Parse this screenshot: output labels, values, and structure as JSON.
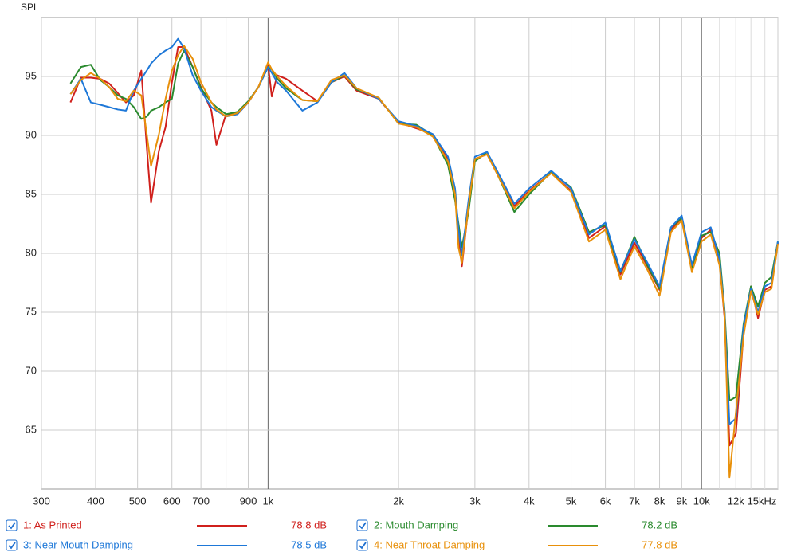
{
  "chart_data": {
    "type": "line",
    "ylabel": "SPL",
    "log_x": true,
    "grid": true,
    "xlim": [
      300,
      15000
    ],
    "ylim": [
      60,
      100
    ],
    "yticks": [
      65,
      70,
      75,
      80,
      85,
      90,
      95
    ],
    "xticks": [
      300,
      400,
      500,
      600,
      700,
      900,
      {
        "value": 1000,
        "label": "1k"
      },
      {
        "value": 2000,
        "label": "2k"
      },
      {
        "value": 3000,
        "label": "3k"
      },
      {
        "value": 4000,
        "label": "4k"
      },
      {
        "value": 5000,
        "label": "5k"
      },
      {
        "value": 6000,
        "label": "6k"
      },
      {
        "value": 7000,
        "label": "7k"
      },
      {
        "value": 8000,
        "label": "8k"
      },
      {
        "value": 9000,
        "label": "9k"
      },
      {
        "value": 10000,
        "label": "10k"
      },
      {
        "value": 12000,
        "label": "12k"
      },
      {
        "value": 15000,
        "label": "15kHz"
      }
    ],
    "xminor": [
      800,
      11000,
      13000,
      14000
    ],
    "x": [
      350,
      370,
      390,
      410,
      430,
      450,
      470,
      490,
      510,
      525,
      537,
      560,
      580,
      600,
      620,
      640,
      670,
      700,
      740,
      760,
      800,
      850,
      900,
      950,
      1000,
      1020,
      1050,
      1100,
      1200,
      1300,
      1400,
      1500,
      1600,
      1800,
      2000,
      2200,
      2400,
      2600,
      2700,
      2750,
      2800,
      2900,
      3000,
      3200,
      3500,
      3700,
      4000,
      4500,
      5000,
      5500,
      6000,
      6500,
      7000,
      7500,
      8000,
      8500,
      9000,
      9500,
      10000,
      10500,
      11000,
      11300,
      11600,
      12000,
      12500,
      13000,
      13500,
      14000,
      14500,
      15000
    ],
    "series": [
      {
        "name": "1: As Printed",
        "color": "#d0201c",
        "level": 78.8,
        "level_label": "78.8 dB",
        "values": [
          92.8,
          94.9,
          94.9,
          94.8,
          94.4,
          93.6,
          92.8,
          93.4,
          95.5,
          89.0,
          84.3,
          88.7,
          90.7,
          94.5,
          97.5,
          97.5,
          95.8,
          94.1,
          92.1,
          89.2,
          91.8,
          91.8,
          92.8,
          94.1,
          96.0,
          93.3,
          95.1,
          94.8,
          93.8,
          92.9,
          94.5,
          95.0,
          93.8,
          93.1,
          91.1,
          90.6,
          90.1,
          88.0,
          85.3,
          81.3,
          78.9,
          84.0,
          88.0,
          88.4,
          85.7,
          84.0,
          85.3,
          86.8,
          85.3,
          81.3,
          82.3,
          78.2,
          80.9,
          78.9,
          76.9,
          82.0,
          83.0,
          78.6,
          81.3,
          82.0,
          79.3,
          74.5,
          63.7,
          64.7,
          73.2,
          77.2,
          74.5,
          76.9,
          77.2,
          80.9
        ]
      },
      {
        "name": "2: Mouth Damping",
        "color": "#2a8a2e",
        "level": 78.2,
        "level_label": "78.2 dB",
        "values": [
          94.4,
          95.8,
          96.0,
          94.7,
          94.1,
          93.4,
          93.1,
          92.4,
          91.4,
          91.6,
          92.1,
          92.4,
          92.8,
          93.1,
          96.1,
          97.2,
          95.8,
          94.0,
          92.8,
          92.4,
          91.8,
          92.0,
          92.9,
          94.1,
          95.8,
          95.6,
          94.8,
          94.0,
          93.0,
          92.9,
          94.5,
          95.1,
          93.9,
          93.2,
          91.0,
          90.9,
          90.0,
          87.5,
          84.5,
          82.5,
          80.5,
          83.5,
          87.8,
          88.6,
          85.5,
          83.5,
          85.0,
          86.9,
          85.6,
          81.8,
          82.4,
          78.4,
          81.4,
          79.0,
          77.0,
          82.2,
          83.0,
          78.8,
          81.5,
          81.8,
          80.0,
          75.2,
          67.5,
          67.8,
          74.0,
          77.2,
          75.5,
          77.5,
          78.0,
          81.0
        ]
      },
      {
        "name": "3: Near Mouth Damping",
        "color": "#1e78d8",
        "level": 78.5,
        "level_label": "78.5 dB",
        "values": [
          93.5,
          94.8,
          92.8,
          92.6,
          92.4,
          92.2,
          92.1,
          93.8,
          94.8,
          95.5,
          96.1,
          96.8,
          97.2,
          97.5,
          98.2,
          97.4,
          95.1,
          93.8,
          92.4,
          92.1,
          91.6,
          91.8,
          92.8,
          94.1,
          95.8,
          95.3,
          94.5,
          93.8,
          92.1,
          92.8,
          94.5,
          95.3,
          94.0,
          93.1,
          91.2,
          90.8,
          90.1,
          88.2,
          85.5,
          82.0,
          79.8,
          84.5,
          88.2,
          88.6,
          85.9,
          84.2,
          85.5,
          87.0,
          85.5,
          81.6,
          82.6,
          78.5,
          81.2,
          79.2,
          77.2,
          82.2,
          83.2,
          79.0,
          81.8,
          82.2,
          79.5,
          75.0,
          65.5,
          66.0,
          73.8,
          77.0,
          75.0,
          77.2,
          77.5,
          81.0
        ]
      },
      {
        "name": "4: Near Throat Damping",
        "color": "#e8900a",
        "level": 77.8,
        "level_label": "77.8 dB",
        "values": [
          93.5,
          94.7,
          95.3,
          94.8,
          94.1,
          93.1,
          92.9,
          93.8,
          93.4,
          90.1,
          87.4,
          90.1,
          93.1,
          95.5,
          96.8,
          97.6,
          96.5,
          94.5,
          92.8,
          92.2,
          91.6,
          91.9,
          92.8,
          94.1,
          96.2,
          95.6,
          95.0,
          94.2,
          93.0,
          92.9,
          94.7,
          95.1,
          94.0,
          93.2,
          91.0,
          90.7,
          89.9,
          87.8,
          85.0,
          80.5,
          79.2,
          84.0,
          88.0,
          88.4,
          85.6,
          83.8,
          85.2,
          86.8,
          85.2,
          81.0,
          82.0,
          77.8,
          80.6,
          78.6,
          76.4,
          81.8,
          82.8,
          78.4,
          81.0,
          81.6,
          79.0,
          74.8,
          61.0,
          66.5,
          73.0,
          76.8,
          74.8,
          76.7,
          77.0,
          80.8
        ]
      }
    ]
  }
}
